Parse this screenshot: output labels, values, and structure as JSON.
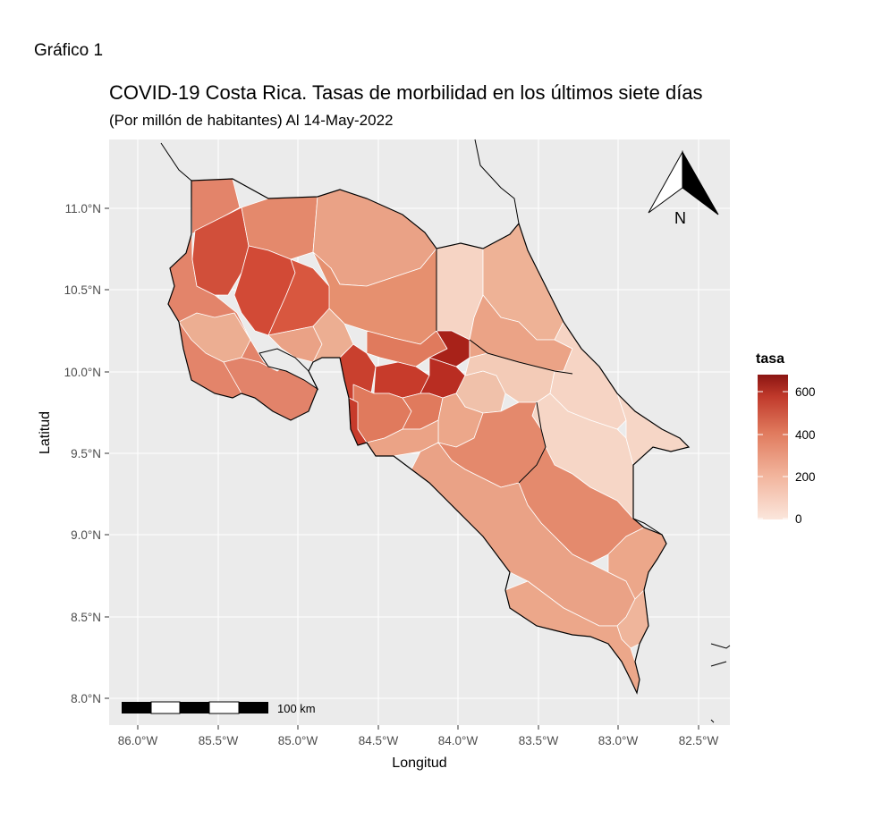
{
  "document_label": "Gráfico 1",
  "title": "COVID-19 Costa Rica. Tasas de morbilidad en los últimos siete días",
  "subtitle": "(Por millón de habitantes) Al 14-May-2022",
  "axes": {
    "xlabel": "Longitud",
    "ylabel": "Latitud",
    "x_ticks": [
      "86.0°W",
      "85.5°W",
      "85.0°W",
      "84.5°W",
      "84.0°W",
      "83.5°W",
      "83.0°W",
      "82.5°W"
    ],
    "y_ticks": [
      "11.0°N",
      "10.5°N",
      "10.0°N",
      "9.5°N",
      "9.0°N",
      "8.5°N",
      "8.0°N"
    ],
    "x_range_deg_w": [
      86.1,
      82.35
    ],
    "y_range_deg_n": [
      7.85,
      11.35
    ]
  },
  "legend": {
    "title": "tasa",
    "ticks": [
      "600",
      "400",
      "200",
      "0"
    ],
    "range": [
      0,
      680
    ],
    "color_low": "#fbe6dc",
    "color_high": "#8b1512"
  },
  "scale_bar": {
    "label": "100 km"
  },
  "north_arrow": {
    "label": "N"
  },
  "colors": {
    "panel_background": "#ebebeb",
    "gridline": "#ffffff",
    "border": "#000000"
  }
}
